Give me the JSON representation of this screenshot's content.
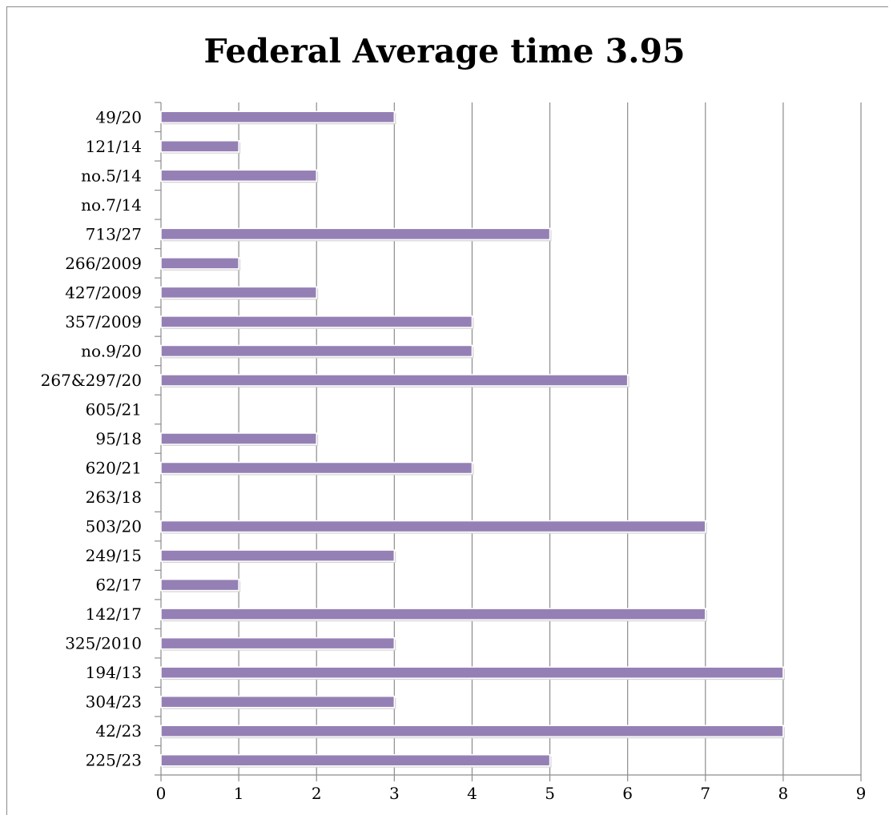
{
  "chart_data": {
    "type": "bar",
    "orientation": "horizontal",
    "title": "Federal Average time 3.95",
    "xlabel": "",
    "ylabel": "",
    "categories": [
      "49/20",
      "121/14",
      "no.5/14",
      "no.7/14",
      "713/27",
      "266/2009",
      "427/2009",
      "357/2009",
      "no.9/20",
      "267&297/20",
      "605/21",
      "95/18",
      "620/21",
      "263/18",
      "503/20",
      "249/15",
      "62/17",
      "142/17",
      "325/2010",
      "194/13",
      "304/23",
      "42/23",
      "225/23"
    ],
    "values": [
      3,
      1,
      2,
      0,
      5,
      1,
      2,
      4,
      4,
      6,
      0,
      2,
      4,
      0,
      7,
      3,
      1,
      7,
      3,
      8,
      3,
      8,
      5
    ],
    "xlim": [
      0,
      9
    ],
    "xticks": [
      0,
      1,
      2,
      3,
      4,
      5,
      6,
      7,
      8,
      9
    ],
    "grid": "vertical",
    "legend": "none",
    "bar_color": "#9580b5",
    "grid_color": "#8c8c8c"
  }
}
